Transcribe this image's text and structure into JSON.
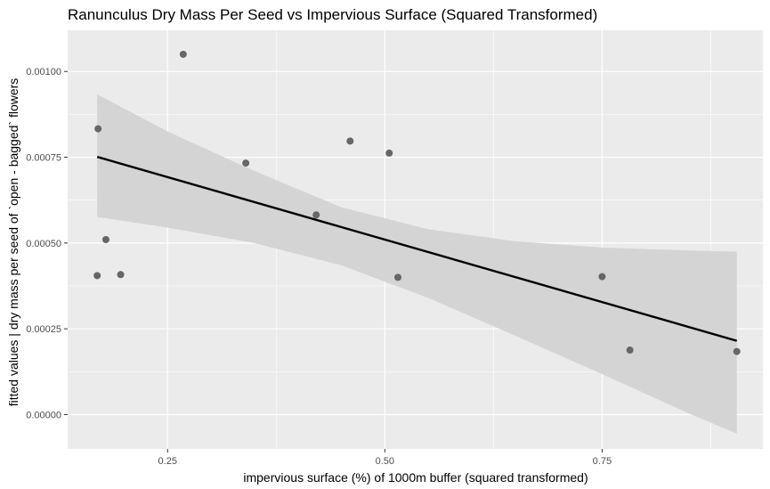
{
  "chart_data": {
    "type": "scatter",
    "title": "Ranunculus Dry Mass Per Seed vs Impervious Surface (Squared Transformed)",
    "xlabel": "impervious surface (%) of 1000m buffer (squared transformed)",
    "ylabel": "fitted values | dry mass per seed of `open - bagged` flowers",
    "xlim": [
      0.135,
      0.935
    ],
    "ylim": [
      -0.0001,
      0.00112
    ],
    "x_ticks": [
      0.25,
      0.5,
      0.75
    ],
    "x_tick_labels": [
      "0.25",
      "0.50",
      "0.75"
    ],
    "y_ticks": [
      0,
      0.00025,
      0.0005,
      0.00075,
      0.001
    ],
    "y_tick_labels": [
      "0.00000",
      "0.00025",
      "0.00050",
      "0.00075",
      "0.00100"
    ],
    "grid": true,
    "points": [
      {
        "x": 0.17,
        "y": 0.000833
      },
      {
        "x": 0.169,
        "y": 0.000405
      },
      {
        "x": 0.179,
        "y": 0.00051
      },
      {
        "x": 0.196,
        "y": 0.000408
      },
      {
        "x": 0.268,
        "y": 0.00105
      },
      {
        "x": 0.34,
        "y": 0.000733
      },
      {
        "x": 0.421,
        "y": 0.000582
      },
      {
        "x": 0.46,
        "y": 0.000797
      },
      {
        "x": 0.505,
        "y": 0.000762
      },
      {
        "x": 0.515,
        "y": 0.0004
      },
      {
        "x": 0.75,
        "y": 0.000402
      },
      {
        "x": 0.782,
        "y": 0.000188
      },
      {
        "x": 0.905,
        "y": 0.000184
      }
    ],
    "fit_line": {
      "x": [
        0.169,
        0.905
      ],
      "y": [
        0.000751,
        0.000215
      ]
    },
    "confidence_band": {
      "x": [
        0.169,
        0.25,
        0.35,
        0.45,
        0.55,
        0.65,
        0.75,
        0.85,
        0.905
      ],
      "lower": [
        0.000576,
        0.000545,
        0.0005,
        0.000435,
        0.00034,
        0.00023,
        0.000118,
        3e-06,
        -5.5e-05
      ],
      "upper": [
        0.000933,
        0.000825,
        0.00071,
        0.000604,
        0.00054,
        0.000505,
        0.000487,
        0.000478,
        0.000475
      ]
    },
    "colors": {
      "panel": "#ebebeb",
      "grid_major": "#ffffff",
      "band": "#d4d4d4",
      "point": "#666666",
      "line": "#000000"
    }
  }
}
